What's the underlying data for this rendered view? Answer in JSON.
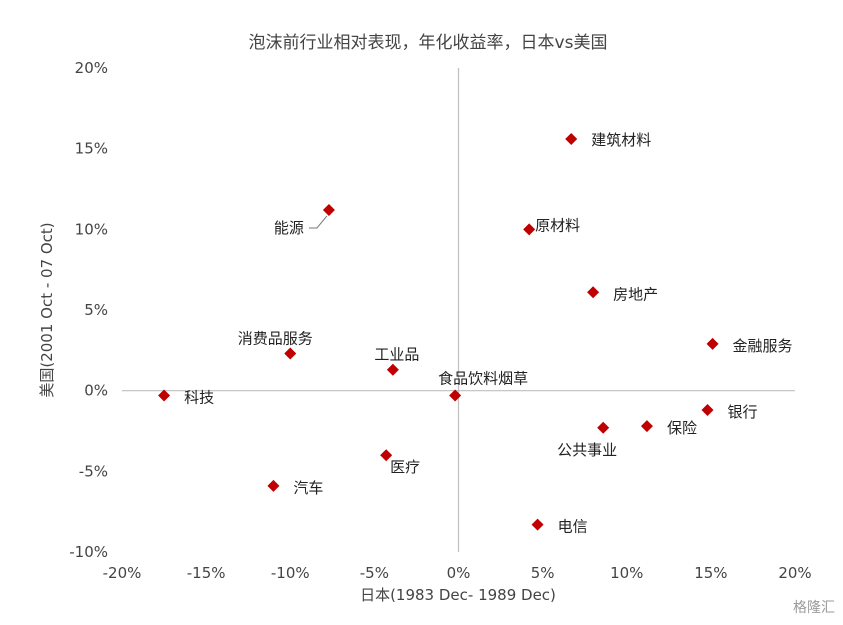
{
  "chart_data": {
    "type": "scatter",
    "title": "泡沫前行业相对表现，年化收益率，日本vs美国",
    "xlabel": "日本(1983 Dec- 1989 Dec)",
    "ylabel": "美国(2001 Oct - 07 Oct)",
    "xlim": [
      -20,
      20
    ],
    "ylim": [
      -10,
      20
    ],
    "x_ticks": [
      "-20%",
      "-15%",
      "-10%",
      "-5%",
      "0%",
      "5%",
      "10%",
      "15%",
      "20%"
    ],
    "y_ticks": [
      "20%",
      "15%",
      "10%",
      "5%",
      "0%",
      "-5%",
      "-10%"
    ],
    "unit": "%",
    "marker_color": "#C00000",
    "points": [
      {
        "label": "建筑材料",
        "x": 6.7,
        "y": 15.6
      },
      {
        "label": "能源",
        "x": -7.7,
        "y": 11.2
      },
      {
        "label": "原材料",
        "x": 4.2,
        "y": 10.0
      },
      {
        "label": "房地产",
        "x": 8.0,
        "y": 6.1
      },
      {
        "label": "金融服务",
        "x": 15.1,
        "y": 2.9
      },
      {
        "label": "消费品服务",
        "x": -10.0,
        "y": 2.3
      },
      {
        "label": "工业品",
        "x": -3.9,
        "y": 1.3
      },
      {
        "label": "食品饮料烟草",
        "x": -0.2,
        "y": -0.3
      },
      {
        "label": "科技",
        "x": -17.5,
        "y": -0.3
      },
      {
        "label": "银行",
        "x": 14.8,
        "y": -1.2
      },
      {
        "label": "保险",
        "x": 11.2,
        "y": -2.2
      },
      {
        "label": "公共事业",
        "x": 8.6,
        "y": -2.3
      },
      {
        "label": "医疗",
        "x": -4.3,
        "y": -4.0
      },
      {
        "label": "汽车",
        "x": -11.0,
        "y": -5.9
      },
      {
        "label": "电信",
        "x": 4.7,
        "y": -8.3
      }
    ]
  },
  "watermark": "格隆汇"
}
